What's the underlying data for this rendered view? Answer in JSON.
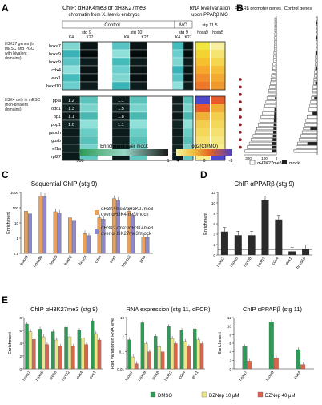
{
  "panel_letters": {
    "A": "A",
    "B": "B",
    "C": "C",
    "D": "D",
    "E": "E"
  },
  "panelA": {
    "chip_title": "ChIP: αH3K4me3 or αH3K27me3",
    "chip_subtitle": "chromatin from X. laevis embryos",
    "rna_title": "RNA level variation",
    "rna_subtitle": "upon PPARβ MO",
    "col_groups": [
      "Control",
      "MO"
    ],
    "stages": [
      "stg 9",
      "stg 10",
      "stg 9"
    ],
    "marks": [
      "K4",
      "K27",
      "K4",
      "K27",
      "K4",
      "K27"
    ],
    "rna_stage": "stg 11.5",
    "rna_cols": [
      "hoxa9",
      "hoxa5"
    ],
    "group1_label": "H3K27 genes (in mESC and PGC with bivalent domains)",
    "group2_label": "H3K4 only in mESC (non-bivalent domains)",
    "genes_group1": [
      "hoxa7",
      "hoxa9",
      "hoxd9",
      "cdx4",
      "evx1",
      "hoxd10"
    ],
    "genes_group2": [
      "ppia",
      "odc1",
      "pp1",
      "ppp1",
      "gapdh",
      "gusb",
      "ef1a",
      "rpl27"
    ],
    "values": [
      "1.2",
      "1.3",
      "1.1",
      "1.0",
      "1.1",
      "1.5",
      "1.8",
      "1.1"
    ],
    "scale_enrich_label": "Enrichment over mock",
    "scale_enrich_ticks": [
      "300",
      "1"
    ],
    "scale_log_label": "log2(Ctl/MO)",
    "scale_log_ticks": [
      "4",
      "0",
      "-3"
    ]
  },
  "panelB": {
    "left_title": "PPARβ promoter genes",
    "right_title": "Control genes",
    "legend": [
      "αH3K27me3",
      "mock"
    ],
    "axis_ticks": [
      "300",
      "100",
      "0"
    ]
  },
  "chart_data": [
    {
      "type": "bar",
      "title": "Sequential ChIP (stg 9)",
      "ylabel": "Enrichment",
      "yscale": "log",
      "ylim": [
        0.1,
        1000
      ],
      "categories": [
        "hoxa9",
        "hoxa9b",
        "hoxb9",
        "hoxb2",
        "hoxc4",
        "cdx4",
        "evx1",
        "hoxd10",
        "ppia"
      ],
      "series": [
        {
          "name": "αH3K4me3/αH3K27me3 over αH3K4me3/mock",
          "values": [
            60,
            600,
            55,
            22,
            2,
            22,
            400,
            60,
            1.2
          ]
        },
        {
          "name": "αH3K27me3/αH3K4me3 over αH3K27me3/mock",
          "values": [
            40,
            550,
            45,
            15,
            1.5,
            18,
            300,
            30,
            1.1
          ]
        }
      ],
      "legend": [
        "αH3K4me3/αH3K27me3 over αH3K4me3/mock",
        "αH3K27me3/αH3K4me3 over αH3K27me3/mock"
      ]
    },
    {
      "type": "bar",
      "title": "ChIP αPPARβ (stg 9)",
      "ylabel": "Enrichment",
      "ylim": [
        0,
        12
      ],
      "yticks": [
        "0",
        "2",
        "4",
        "6",
        "8",
        "10",
        "12"
      ],
      "categories": [
        "hoxa2",
        "hoxa5",
        "hoxb5",
        "hoxb2",
        "cdx4",
        "evx1",
        "hoxd10"
      ],
      "values": [
        4.5,
        3.8,
        3.8,
        10.5,
        6.8,
        0.7,
        1.2
      ]
    },
    {
      "type": "bar",
      "title": "ChIP αH3K27me3 (stg 9)",
      "ylabel": "Enrichment",
      "categories": [
        "hoxa7",
        "hoxa9",
        "srek8",
        "hoxb2",
        "cdx4",
        "evx1"
      ],
      "series": [
        {
          "name": "DMSO",
          "values": [
            7,
            6.2,
            5.8,
            6.5,
            6,
            7.5
          ]
        },
        {
          "name": "DZNep 10 μM",
          "values": [
            5.8,
            5,
            4.5,
            5,
            4.8,
            5.5
          ]
        },
        {
          "name": "DZNep 40 μM",
          "values": [
            4.6,
            3.8,
            3.5,
            3.5,
            3.8,
            4.5
          ]
        }
      ]
    },
    {
      "type": "bar",
      "title": "RNA expression (stg 11, qPCR)",
      "ylabel": "Fold variation in RNA level",
      "yscale": "log",
      "categories": [
        "hoxa7",
        "hoxa9",
        "srek8",
        "hoxb2",
        "cdx4",
        "evx1"
      ],
      "series": [
        {
          "name": "DMSO",
          "values": [
            0.5,
            5,
            0.8,
            3,
            1.8,
            2.2
          ]
        },
        {
          "name": "DZNep 10 μM",
          "values": [
            0.05,
            0.3,
            0.2,
            0.6,
            0.4,
            0.5
          ]
        },
        {
          "name": "DZNep 40 μM",
          "values": [
            0.02,
            0.1,
            0.1,
            0.3,
            0.2,
            0.3
          ]
        }
      ]
    },
    {
      "type": "bar",
      "title": "ChIP αPPARβ (stg 11)",
      "ylabel": "Enrichment",
      "categories": [
        "hoxa7",
        "hoxa9",
        "cdx4"
      ],
      "series": [
        {
          "name": "DMSO",
          "values": [
            5.2,
            11,
            4.5
          ]
        },
        {
          "name": "DZNep 40 μM",
          "values": [
            1.8,
            2.5,
            1
          ]
        }
      ]
    }
  ],
  "legendE": [
    "DMSO",
    "DZNep 10 μM",
    "DZNep 40 μM"
  ],
  "colors": {
    "orange": "#e8a05a",
    "purple": "#8e86c8",
    "dark": "#2b2b2b",
    "green": "#2e9a56",
    "yellow": "#ece58a",
    "red": "#d9664a"
  }
}
